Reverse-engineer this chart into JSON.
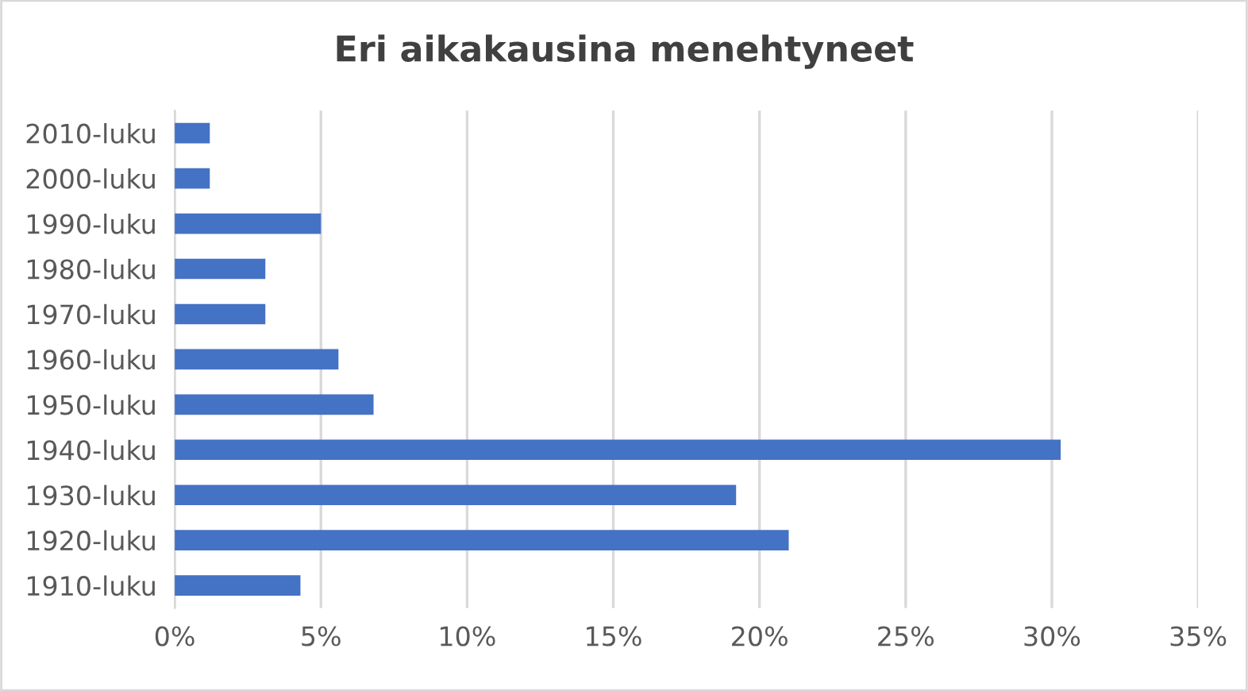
{
  "chart_data": {
    "type": "bar",
    "orientation": "horizontal",
    "title": "Eri aikakausina menehtyneet",
    "categories": [
      "2010-luku",
      "2000-luku",
      "1990-luku",
      "1980-luku",
      "1970-luku",
      "1960-luku",
      "1950-luku",
      "1940-luku",
      "1930-luku",
      "1920-luku",
      "1910-luku"
    ],
    "values": [
      1.2,
      1.2,
      5.0,
      3.1,
      3.1,
      5.6,
      6.8,
      30.3,
      19.2,
      21.0,
      4.3
    ],
    "color": "#4472c4",
    "xlim": [
      0,
      35
    ],
    "xticks": [
      {
        "value": 0,
        "label": "0%"
      },
      {
        "value": 5,
        "label": "5%"
      },
      {
        "value": 10,
        "label": "10%"
      },
      {
        "value": 15,
        "label": "15%"
      },
      {
        "value": 20,
        "label": "20%"
      },
      {
        "value": 25,
        "label": "25%"
      },
      {
        "value": 30,
        "label": "30%"
      },
      {
        "value": 35,
        "label": "35%"
      }
    ],
    "grid": "x",
    "legend": false
  }
}
